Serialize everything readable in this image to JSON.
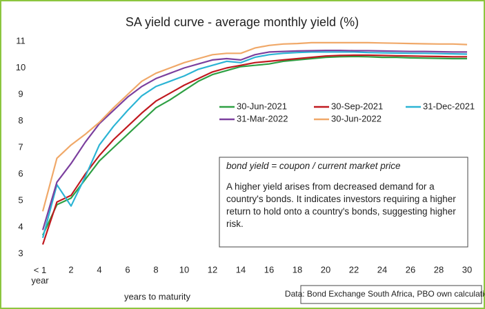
{
  "chart_data": {
    "type": "line",
    "title": "SA yield curve - average monthly yield (%)",
    "x_label": "years to maturity",
    "categories": [
      "< 1 year",
      null,
      "2",
      null,
      "4",
      null,
      "6",
      null,
      "8",
      null,
      "10",
      null,
      "12",
      null,
      "14",
      null,
      "16",
      null,
      "18",
      null,
      "20",
      null,
      "22",
      null,
      "24",
      null,
      "26",
      null,
      "28",
      null,
      "30"
    ],
    "ylim": [
      3,
      11
    ],
    "yticks": [
      3,
      4,
      5,
      6,
      7,
      8,
      9,
      10,
      11
    ],
    "grid": false,
    "series": [
      {
        "name": "30-Jun-2021",
        "color": "#2ea043",
        "values": [
          3.7,
          4.85,
          5.1,
          5.8,
          6.5,
          7.0,
          7.5,
          8.0,
          8.5,
          8.8,
          9.15,
          9.5,
          9.75,
          9.9,
          10.05,
          10.1,
          10.15,
          10.25,
          10.3,
          10.35,
          10.4,
          10.42,
          10.43,
          10.42,
          10.4,
          10.4,
          10.38,
          10.37,
          10.36,
          10.35,
          10.35
        ]
      },
      {
        "name": "30-Sep-2021",
        "color": "#c0191f",
        "values": [
          3.35,
          4.95,
          5.2,
          6.0,
          6.7,
          7.3,
          7.8,
          8.3,
          8.75,
          9.05,
          9.35,
          9.6,
          9.85,
          10.0,
          10.1,
          10.2,
          10.25,
          10.3,
          10.35,
          10.4,
          10.45,
          10.47,
          10.48,
          10.48,
          10.47,
          10.46,
          10.45,
          10.44,
          10.43,
          10.42,
          10.42
        ]
      },
      {
        "name": "31-Dec-2021",
        "color": "#2bb4d4",
        "values": [
          3.6,
          5.6,
          4.8,
          5.9,
          7.1,
          7.8,
          8.4,
          8.95,
          9.3,
          9.5,
          9.7,
          9.95,
          10.1,
          10.25,
          10.2,
          10.4,
          10.5,
          10.55,
          10.58,
          10.6,
          10.6,
          10.6,
          10.6,
          10.58,
          10.57,
          10.56,
          10.55,
          10.55,
          10.54,
          10.53,
          10.52
        ]
      },
      {
        "name": "31-Mar-2022",
        "color": "#7b3f9e",
        "values": [
          3.9,
          5.7,
          6.4,
          7.2,
          7.9,
          8.4,
          8.9,
          9.3,
          9.6,
          9.8,
          10.0,
          10.15,
          10.3,
          10.35,
          10.3,
          10.5,
          10.6,
          10.62,
          10.64,
          10.65,
          10.66,
          10.66,
          10.65,
          10.65,
          10.64,
          10.63,
          10.62,
          10.62,
          10.61,
          10.6,
          10.6
        ]
      },
      {
        "name": "30-Jun-2022",
        "color": "#f0a868",
        "values": [
          4.6,
          6.6,
          7.1,
          7.5,
          7.95,
          8.5,
          9.0,
          9.5,
          9.8,
          10.0,
          10.2,
          10.35,
          10.5,
          10.55,
          10.55,
          10.75,
          10.85,
          10.9,
          10.92,
          10.95,
          10.95,
          10.95,
          10.95,
          10.95,
          10.94,
          10.93,
          10.92,
          10.91,
          10.9,
          10.9,
          10.88
        ]
      }
    ],
    "annotation": {
      "formula": "bond yield = coupon / current market price",
      "text": "A higher yield arises from decreased demand for a country's bonds. It indicates investors requiring a higher return to hold onto a country's bonds, suggesting higher risk."
    },
    "source": "Data: Bond Exchange South Africa, PBO own calculations"
  }
}
